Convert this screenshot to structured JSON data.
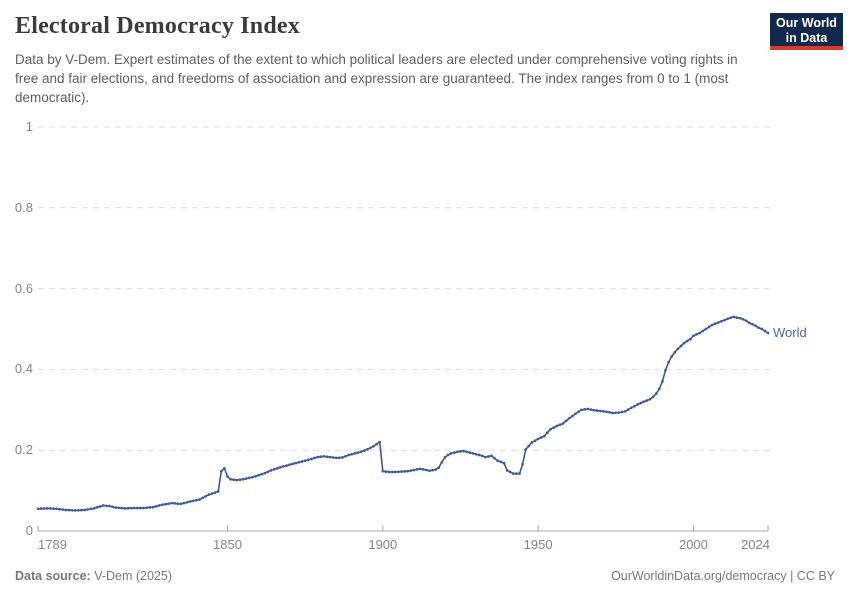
{
  "header": {
    "title": "Electoral Democracy Index",
    "subtitle": "Data by V-Dem. Expert estimates of the extent to which political leaders are elected under comprehensive voting rights in free and fair elections, and freedoms of association and expression are guaranteed. The index ranges from 0 to 1 (most democratic)."
  },
  "logo": {
    "line1": "Our World",
    "line2": "in Data"
  },
  "chart_data": {
    "type": "line",
    "title": "Electoral Democracy Index",
    "xlabel": "",
    "ylabel": "",
    "xlim": [
      1789,
      2024
    ],
    "ylim": [
      0,
      1
    ],
    "x_ticks": [
      1789,
      1850,
      1900,
      1950,
      2000,
      2024
    ],
    "x_tick_labels": [
      "1789",
      "1850",
      "1900",
      "1950",
      "2000",
      "2024"
    ],
    "y_ticks": [
      0,
      0.2,
      0.4,
      0.6,
      0.8,
      1
    ],
    "y_tick_labels": [
      "0",
      "0.2",
      "0.4",
      "0.6",
      "0.8",
      "1"
    ],
    "grid": "horizontal-dashed",
    "legend_position": "end-of-line-label",
    "series": [
      {
        "name": "World",
        "color": "#3d5a96",
        "points": [
          [
            1789,
            0.055
          ],
          [
            1792,
            0.056
          ],
          [
            1795,
            0.055
          ],
          [
            1798,
            0.052
          ],
          [
            1801,
            0.051
          ],
          [
            1804,
            0.052
          ],
          [
            1807,
            0.056
          ],
          [
            1810,
            0.063
          ],
          [
            1812,
            0.062
          ],
          [
            1814,
            0.058
          ],
          [
            1817,
            0.056
          ],
          [
            1820,
            0.057
          ],
          [
            1823,
            0.057
          ],
          [
            1826,
            0.059
          ],
          [
            1829,
            0.065
          ],
          [
            1832,
            0.069
          ],
          [
            1835,
            0.067
          ],
          [
            1838,
            0.073
          ],
          [
            1841,
            0.078
          ],
          [
            1844,
            0.09
          ],
          [
            1846,
            0.095
          ],
          [
            1847,
            0.098
          ],
          [
            1848,
            0.148
          ],
          [
            1849,
            0.155
          ],
          [
            1850,
            0.135
          ],
          [
            1851,
            0.128
          ],
          [
            1853,
            0.126
          ],
          [
            1855,
            0.128
          ],
          [
            1858,
            0.133
          ],
          [
            1860,
            0.138
          ],
          [
            1862,
            0.143
          ],
          [
            1864,
            0.15
          ],
          [
            1866,
            0.155
          ],
          [
            1868,
            0.16
          ],
          [
            1870,
            0.164
          ],
          [
            1873,
            0.17
          ],
          [
            1876,
            0.176
          ],
          [
            1879,
            0.183
          ],
          [
            1881,
            0.185
          ],
          [
            1883,
            0.183
          ],
          [
            1885,
            0.181
          ],
          [
            1887,
            0.182
          ],
          [
            1889,
            0.188
          ],
          [
            1891,
            0.192
          ],
          [
            1893,
            0.196
          ],
          [
            1895,
            0.202
          ],
          [
            1897,
            0.21
          ],
          [
            1899,
            0.22
          ],
          [
            1900,
            0.148
          ],
          [
            1902,
            0.146
          ],
          [
            1904,
            0.146
          ],
          [
            1906,
            0.147
          ],
          [
            1908,
            0.148
          ],
          [
            1910,
            0.151
          ],
          [
            1912,
            0.154
          ],
          [
            1914,
            0.151
          ],
          [
            1915,
            0.149
          ],
          [
            1917,
            0.152
          ],
          [
            1918,
            0.157
          ],
          [
            1919,
            0.17
          ],
          [
            1920,
            0.182
          ],
          [
            1921,
            0.188
          ],
          [
            1922,
            0.192
          ],
          [
            1924,
            0.196
          ],
          [
            1926,
            0.198
          ],
          [
            1928,
            0.194
          ],
          [
            1930,
            0.19
          ],
          [
            1932,
            0.186
          ],
          [
            1933,
            0.183
          ],
          [
            1935,
            0.186
          ],
          [
            1936,
            0.18
          ],
          [
            1937,
            0.174
          ],
          [
            1939,
            0.168
          ],
          [
            1940,
            0.15
          ],
          [
            1942,
            0.142
          ],
          [
            1944,
            0.142
          ],
          [
            1945,
            0.165
          ],
          [
            1946,
            0.202
          ],
          [
            1948,
            0.219
          ],
          [
            1950,
            0.228
          ],
          [
            1952,
            0.235
          ],
          [
            1954,
            0.252
          ],
          [
            1956,
            0.26
          ],
          [
            1958,
            0.266
          ],
          [
            1960,
            0.279
          ],
          [
            1962,
            0.29
          ],
          [
            1964,
            0.3
          ],
          [
            1966,
            0.302
          ],
          [
            1968,
            0.299
          ],
          [
            1970,
            0.297
          ],
          [
            1972,
            0.295
          ],
          [
            1974,
            0.292
          ],
          [
            1976,
            0.293
          ],
          [
            1978,
            0.296
          ],
          [
            1980,
            0.305
          ],
          [
            1982,
            0.313
          ],
          [
            1984,
            0.32
          ],
          [
            1986,
            0.326
          ],
          [
            1987,
            0.332
          ],
          [
            1988,
            0.34
          ],
          [
            1989,
            0.352
          ],
          [
            1990,
            0.37
          ],
          [
            1991,
            0.398
          ],
          [
            1992,
            0.418
          ],
          [
            1993,
            0.432
          ],
          [
            1994,
            0.442
          ],
          [
            1995,
            0.451
          ],
          [
            1996,
            0.458
          ],
          [
            1997,
            0.465
          ],
          [
            1998,
            0.47
          ],
          [
            1999,
            0.475
          ],
          [
            2000,
            0.483
          ],
          [
            2001,
            0.487
          ],
          [
            2002,
            0.49
          ],
          [
            2004,
            0.5
          ],
          [
            2006,
            0.51
          ],
          [
            2008,
            0.516
          ],
          [
            2010,
            0.522
          ],
          [
            2012,
            0.528
          ],
          [
            2013,
            0.53
          ],
          [
            2014,
            0.528
          ],
          [
            2015,
            0.527
          ],
          [
            2016,
            0.524
          ],
          [
            2017,
            0.52
          ],
          [
            2018,
            0.515
          ],
          [
            2019,
            0.512
          ],
          [
            2020,
            0.508
          ],
          [
            2021,
            0.503
          ],
          [
            2022,
            0.5
          ],
          [
            2023,
            0.495
          ],
          [
            2024,
            0.49
          ]
        ]
      }
    ]
  },
  "footer": {
    "source_label": "Data source:",
    "source_value": "V-Dem (2025)",
    "credit": "OurWorldinData.org/democracy | CC BY"
  },
  "colors": {
    "line": "#3d5a96",
    "series_label": "#4a68a8",
    "grid": "#dedede",
    "axis": "#a5a5a5",
    "tick_text": "#858585",
    "logo_bg": "#12294e",
    "logo_accent": "#d93a2b"
  }
}
